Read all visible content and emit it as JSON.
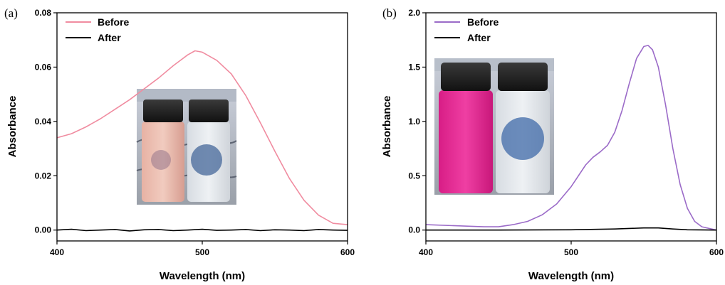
{
  "chart_data": [
    {
      "type": "line",
      "panel_label": "(a)",
      "xlabel": "Wavelength (nm)",
      "ylabel": "Absorbance",
      "xlim": [
        400,
        600
      ],
      "ylim": [
        -0.004,
        0.08
      ],
      "xticks": [
        "400",
        "500",
        "600"
      ],
      "yticks": [
        "0.00",
        "0.02",
        "0.04",
        "0.06",
        "0.08"
      ],
      "ytick_values": [
        0,
        0.02,
        0.04,
        0.06,
        0.08
      ],
      "xtick_values": [
        400,
        500,
        600
      ],
      "legend": "top-left",
      "grid": false,
      "inset": "photo of two vials: pink solution (left) and clear solution (right)",
      "series": [
        {
          "name": "Before",
          "color": "#f08ca0",
          "x": [
            400,
            410,
            420,
            430,
            440,
            450,
            460,
            470,
            480,
            490,
            495,
            500,
            510,
            520,
            530,
            540,
            550,
            560,
            570,
            580,
            590,
            600
          ],
          "y": [
            0.034,
            0.0355,
            0.038,
            0.041,
            0.0445,
            0.048,
            0.052,
            0.056,
            0.0605,
            0.0645,
            0.066,
            0.0655,
            0.0625,
            0.0575,
            0.0495,
            0.0395,
            0.029,
            0.019,
            0.011,
            0.0055,
            0.0025,
            0.002
          ]
        },
        {
          "name": "After",
          "color": "#000000",
          "x": [
            400,
            410,
            420,
            430,
            440,
            450,
            460,
            470,
            480,
            490,
            500,
            510,
            520,
            530,
            540,
            550,
            560,
            570,
            580,
            590,
            600
          ],
          "y": [
            0.0,
            0.0003,
            -0.0002,
            0.0,
            0.0002,
            -0.0003,
            0.0001,
            0.0002,
            -0.0002,
            0.0,
            0.0003,
            -0.0001,
            0.0,
            0.0002,
            -0.0002,
            0.0001,
            0.0,
            -0.0002,
            0.0002,
            0.0,
            -0.0001
          ]
        }
      ]
    },
    {
      "type": "line",
      "panel_label": "(b)",
      "xlabel": "Wavelength (nm)",
      "ylabel": "Absorbance",
      "xlim": [
        400,
        600
      ],
      "ylim": [
        -0.1,
        2.0
      ],
      "xticks": [
        "400",
        "500",
        "600"
      ],
      "yticks": [
        "0.0",
        "0.5",
        "1.0",
        "1.5",
        "2.0"
      ],
      "ytick_values": [
        0,
        0.5,
        1.0,
        1.5,
        2.0
      ],
      "xtick_values": [
        400,
        500,
        600
      ],
      "legend": "top-left",
      "grid": false,
      "inset": "photo of two vials: magenta solution (left) and clear solution (right)",
      "series": [
        {
          "name": "Before",
          "color": "#9b6bc8",
          "x": [
            400,
            420,
            440,
            450,
            460,
            470,
            480,
            490,
            500,
            505,
            510,
            515,
            520,
            525,
            530,
            535,
            540,
            545,
            550,
            553,
            556,
            560,
            565,
            570,
            575,
            580,
            585,
            590,
            600
          ],
          "y": [
            0.05,
            0.04,
            0.03,
            0.03,
            0.05,
            0.08,
            0.14,
            0.24,
            0.4,
            0.5,
            0.6,
            0.67,
            0.72,
            0.78,
            0.9,
            1.1,
            1.35,
            1.58,
            1.69,
            1.7,
            1.66,
            1.5,
            1.15,
            0.75,
            0.42,
            0.2,
            0.08,
            0.03,
            0.0
          ]
        },
        {
          "name": "After",
          "color": "#000000",
          "x": [
            400,
            450,
            500,
            530,
            550,
            560,
            570,
            580,
            600
          ],
          "y": [
            0.0,
            0.0,
            0.003,
            0.01,
            0.02,
            0.02,
            0.01,
            0.003,
            0.0
          ]
        }
      ]
    }
  ]
}
